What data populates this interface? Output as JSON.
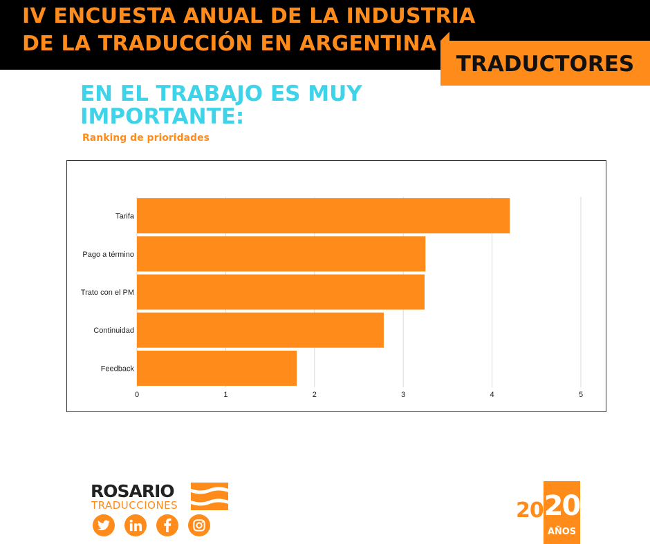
{
  "header": {
    "title_line1": "IV ENCUESTA ANUAL DE LA INDUSTRIA",
    "title_line2": "DE LA TRADUCCIÓN EN ARGENTINA",
    "badge": "TRADUCTORES"
  },
  "section": {
    "title": "EN EL TRABAJO ES MUY IMPORTANTE:",
    "subtitle": "Ranking de prioridades"
  },
  "colors": {
    "accent": "#ff8c1a",
    "title_cyan": "#3ed3e8",
    "header_bg": "#000000"
  },
  "chart_data": {
    "type": "bar",
    "orientation": "horizontal",
    "categories": [
      "Tarifa",
      "Pago a término",
      "Trato con el PM",
      "Continuidad",
      "Feedback"
    ],
    "values": [
      4.2,
      3.25,
      3.24,
      2.78,
      1.8
    ],
    "xlim": [
      0,
      5
    ],
    "xticks": [
      "0",
      "1",
      "2",
      "3",
      "4",
      "5"
    ],
    "grid": "vertical",
    "bar_color": "#ff8c1a"
  },
  "footer": {
    "logo_main": "ROSARIO",
    "logo_sub": "TRADUCCIONES",
    "social_icons": [
      "twitter-icon",
      "linkedin-icon",
      "facebook-icon",
      "instagram-icon"
    ],
    "anniversary_prefix": "20",
    "anniversary_number": "20",
    "anniversary_label": "AÑOS"
  }
}
